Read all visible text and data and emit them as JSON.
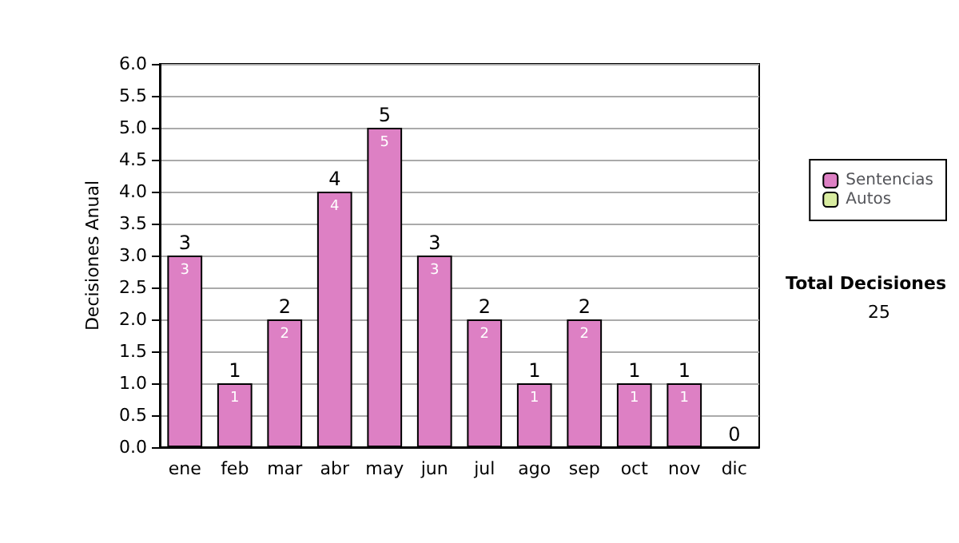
{
  "chart_data": {
    "type": "bar",
    "stacked": true,
    "ylabel": "Decisiones Anual",
    "categories": [
      "ene",
      "feb",
      "mar",
      "abr",
      "may",
      "jun",
      "jul",
      "ago",
      "sep",
      "oct",
      "nov",
      "dic"
    ],
    "series": [
      {
        "name": "Sentencias",
        "color": "#dd80c4",
        "values": [
          3,
          1,
          2,
          4,
          5,
          3,
          2,
          1,
          2,
          1,
          1,
          0
        ],
        "value_labels": [
          "3",
          "1",
          "2",
          "4",
          "5",
          "3",
          "2",
          "1",
          "2",
          "1",
          "1",
          null
        ]
      },
      {
        "name": "Autos",
        "color": "#d8eca0",
        "values": [
          0,
          0,
          0,
          0,
          0,
          0,
          0,
          0,
          0,
          0,
          0,
          0
        ]
      }
    ],
    "totals": [
      "3",
      "1",
      "2",
      "4",
      "5",
      "3",
      "2",
      "1",
      "2",
      "1",
      "1",
      "0"
    ],
    "ylim": [
      0,
      6
    ],
    "yticks": [
      {
        "value": 0,
        "label": "0.0"
      },
      {
        "value": 0.5,
        "label": "0.5"
      },
      {
        "value": 1,
        "label": "1.0"
      },
      {
        "value": 1.5,
        "label": "1.5"
      },
      {
        "value": 2,
        "label": "2.0"
      },
      {
        "value": 2.5,
        "label": "2.5"
      },
      {
        "value": 3,
        "label": "3.0"
      },
      {
        "value": 3.5,
        "label": "3.5"
      },
      {
        "value": 4,
        "label": "4.0"
      },
      {
        "value": 4.5,
        "label": "4.5"
      },
      {
        "value": 5,
        "label": "5.0"
      },
      {
        "value": 5.5,
        "label": "5.5"
      },
      {
        "value": 6,
        "label": "6.0"
      }
    ],
    "grid": "y",
    "legend": "right",
    "annotations": [
      "Total Decisiones",
      "25"
    ]
  }
}
